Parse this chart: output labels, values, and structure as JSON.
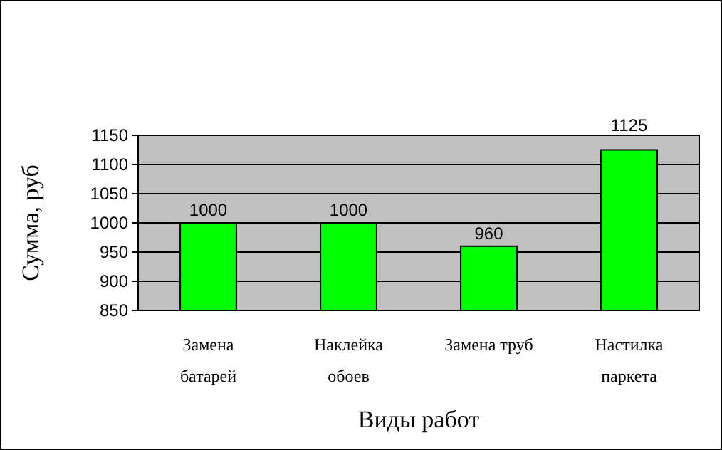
{
  "chart_data": {
    "type": "bar",
    "xlabel": "Виды работ",
    "ylabel": "Сумма, руб",
    "categories": [
      "Замена батарей",
      "Наклейка обоев",
      "Замена труб",
      "Настилка паркета"
    ],
    "values": [
      1000,
      1000,
      960,
      1125
    ],
    "color": "#00ff00",
    "ylim": [
      850,
      1150
    ],
    "yticks": [
      850,
      900,
      950,
      1000,
      1050,
      1100,
      1150
    ],
    "grid": "y",
    "data_labels": true
  }
}
